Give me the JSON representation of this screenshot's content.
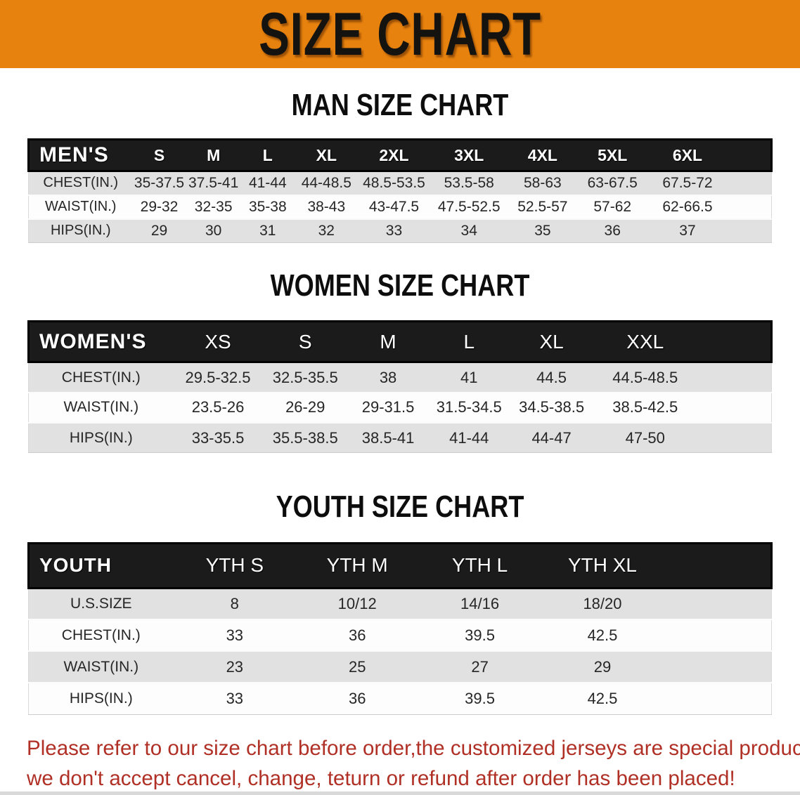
{
  "banner": {
    "title": "SIZE CHART",
    "bg_color": "#E8820E",
    "text_color": "#151310"
  },
  "sections": [
    {
      "heading": "MAN SIZE CHART",
      "table": {
        "corner": "MEN'S",
        "columns": [
          "S",
          "M",
          "L",
          "XL",
          "2XL",
          "3XL",
          "4XL",
          "5XL",
          "6XL"
        ],
        "rows": [
          {
            "label": "CHEST(IN.)",
            "values": [
              "35-37.5",
              "37.5-41",
              "41-44",
              "44-48.5",
              "48.5-53.5",
              "53.5-58",
              "58-63",
              "63-67.5",
              "67.5-72"
            ]
          },
          {
            "label": "WAIST(IN.)",
            "values": [
              "29-32",
              "32-35",
              "35-38",
              "38-43",
              "43-47.5",
              "47.5-52.5",
              "52.5-57",
              "57-62",
              "62-66.5"
            ]
          },
          {
            "label": "HIPS(IN.)",
            "values": [
              "29",
              "30",
              "31",
              "32",
              "33",
              "34",
              "35",
              "36",
              "37"
            ]
          }
        ]
      }
    },
    {
      "heading": "WOMEN SIZE CHART",
      "table": {
        "corner": "WOMEN'S",
        "columns": [
          "XS",
          "S",
          "M",
          "L",
          "XL",
          "XXL"
        ],
        "rows": [
          {
            "label": "CHEST(IN.)",
            "values": [
              "29.5-32.5",
              "32.5-35.5",
              "38",
              "41",
              "44.5",
              "44.5-48.5"
            ]
          },
          {
            "label": "WAIST(IN.)",
            "values": [
              "23.5-26",
              "26-29",
              "29-31.5",
              "31.5-34.5",
              "34.5-38.5",
              "38.5-42.5"
            ]
          },
          {
            "label": "HIPS(IN.)",
            "values": [
              "33-35.5",
              "35.5-38.5",
              "38.5-41",
              "41-44",
              "44-47",
              "47-50"
            ]
          }
        ]
      }
    },
    {
      "heading": "YOUTH SIZE CHART",
      "table": {
        "corner": "YOUTH",
        "columns": [
          "YTH S",
          "YTH M",
          "YTH L",
          "YTH XL"
        ],
        "rows": [
          {
            "label": "U.S.SIZE",
            "values": [
              "8",
              "10/12",
              "14/16",
              "18/20"
            ]
          },
          {
            "label": "CHEST(IN.)",
            "values": [
              "33",
              "36",
              "39.5",
              "42.5"
            ]
          },
          {
            "label": "WAIST(IN.)",
            "values": [
              "23",
              "25",
              "27",
              "29"
            ]
          },
          {
            "label": "HIPS(IN.)",
            "values": [
              "33",
              "36",
              "39.5",
              "42.5"
            ]
          }
        ]
      }
    }
  ],
  "footer": {
    "line1": "Please refer to our size chart before order,the customized jerseys are special products,",
    "line2": "we don't accept cancel, change, teturn or refund after order has been placed!",
    "text_color": "#B03026"
  },
  "table_colors": {
    "header_bg": "#1b1b1b",
    "header_text": "#ffffff",
    "row_gray": "#E1E1E1",
    "row_white": "#FDFDFD"
  }
}
